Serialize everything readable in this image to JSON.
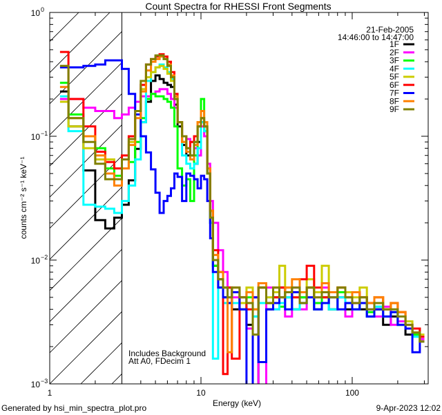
{
  "chart_data": {
    "type": "line",
    "title": "Count Spectra for RHESSI Front Segments",
    "xlabel": "Energy (keV)",
    "ylabel": "counts cm⁻² s⁻¹ keV⁻¹",
    "xscale": "log",
    "yscale": "log",
    "xlim": [
      1,
      318
    ],
    "ylim": [
      0.001,
      1
    ],
    "x_ticks": [
      {
        "value": 1,
        "label": "1"
      },
      {
        "value": 10,
        "label": "10"
      },
      {
        "value": 100,
        "label": "100"
      }
    ],
    "y_ticks": [
      {
        "value": 1,
        "base": "10",
        "exp": "0"
      },
      {
        "value": 0.1,
        "base": "10",
        "exp": "−1"
      },
      {
        "value": 0.01,
        "base": "10",
        "exp": "−2"
      },
      {
        "value": 0.001,
        "base": "10",
        "exp": "−3"
      }
    ],
    "hatched_region": [
      1,
      3
    ],
    "legend_placement": "top-right",
    "date": "21-Feb-2005",
    "time_range": "14:46:00 to 14:47:00",
    "annotations": [
      "Includes Background",
      "Att A0, FDecim 1"
    ],
    "energy_edges": [
      1.17,
      1.33,
      1.67,
      2.0,
      2.33,
      2.67,
      3.0,
      3.33,
      3.67,
      4.0,
      4.33,
      4.67,
      5.0,
      5.33,
      5.67,
      6.0,
      6.33,
      6.67,
      7.0,
      7.5,
      8.0,
      8.5,
      9.0,
      9.5,
      10.0,
      10.5,
      11.0,
      11.5,
      12,
      13,
      14,
      15,
      16,
      18,
      20,
      22,
      24,
      27,
      30,
      33,
      36,
      40,
      45,
      50,
      56,
      63,
      70,
      80,
      90,
      100,
      112,
      125,
      140,
      160,
      180,
      200,
      225,
      250,
      280,
      300
    ],
    "series": [
      {
        "name": "1F",
        "color": "#000000",
        "values": [
          0.23,
          0.12,
          0.053,
          0.021,
          0.018,
          0.022,
          0.028,
          0.044,
          0.079,
          0.13,
          0.19,
          0.28,
          0.31,
          0.29,
          0.27,
          0.26,
          0.25,
          0.18,
          0.12,
          0.085,
          0.07,
          0.065,
          0.06,
          0.09,
          0.13,
          0.11,
          0.05,
          0.02,
          0.009,
          0.007,
          0.005,
          0.006,
          0.004,
          0.005,
          0.003,
          0.0009,
          0.006,
          0.004,
          0.005,
          0.006,
          0.005,
          0.004,
          0.005,
          0.006,
          0.004,
          0.005,
          0.004,
          0.005,
          0.004,
          0.0045,
          0.004,
          0.0035,
          0.004,
          0.003,
          0.0035,
          0.003,
          0.0025,
          0.0028,
          0.0022
        ]
      },
      {
        "name": "2F",
        "color": "#ff00ff",
        "values": [
          0.2,
          0.2,
          0.17,
          0.16,
          0.16,
          0.14,
          0.15,
          0.17,
          0.19,
          0.21,
          0.21,
          0.22,
          0.23,
          0.24,
          0.24,
          0.22,
          0.2,
          0.17,
          0.13,
          0.1,
          0.095,
          0.09,
          0.08,
          0.07,
          0.12,
          0.1,
          0.06,
          0.03,
          0.02,
          0.012,
          0.008,
          0.006,
          0.005,
          0.004,
          0.0028,
          0.005,
          0.0009,
          0.006,
          0.004,
          0.005,
          0.0035,
          0.006,
          0.004,
          0.005,
          0.0045,
          0.006,
          0.004,
          0.005,
          0.0035,
          0.0045,
          0.005,
          0.004,
          0.0035,
          0.0042,
          0.003,
          0.0032,
          0.0028,
          0.0025,
          0.0023
        ]
      },
      {
        "name": "3F",
        "color": "#00ff00",
        "values": [
          0.27,
          0.15,
          0.1,
          0.08,
          0.055,
          0.048,
          0.055,
          0.062,
          0.09,
          0.14,
          0.2,
          0.22,
          0.21,
          0.21,
          0.2,
          0.19,
          0.17,
          0.12,
          0.055,
          0.04,
          0.045,
          0.03,
          0.07,
          0.12,
          0.2,
          0.11,
          0.05,
          0.025,
          0.009,
          0.006,
          0.005,
          0.0045,
          0.0055,
          0.004,
          0.005,
          0.0035,
          0.006,
          0.0045,
          0.005,
          0.0042,
          0.0055,
          0.004,
          0.005,
          0.006,
          0.0045,
          0.005,
          0.004,
          0.0055,
          0.0045,
          0.004,
          0.005,
          0.0038,
          0.0042,
          0.0035,
          0.0038,
          0.003,
          0.0028,
          0.0025,
          0.0022
        ]
      },
      {
        "name": "4F",
        "color": "#00ffff",
        "values": [
          0.21,
          0.11,
          0.028,
          0.027,
          0.026,
          0.024,
          0.03,
          0.04,
          0.065,
          0.13,
          0.28,
          0.33,
          0.36,
          0.38,
          0.36,
          0.33,
          0.29,
          0.2,
          0.13,
          0.07,
          0.06,
          0.055,
          0.06,
          0.08,
          0.13,
          0.11,
          0.05,
          0.02,
          0.0016,
          0.006,
          0.0045,
          0.005,
          0.0045,
          0.004,
          0.0055,
          0.0035,
          0.0045,
          0.005,
          0.004,
          0.0045,
          0.005,
          0.004,
          0.0045,
          0.005,
          0.004,
          0.0045,
          0.004,
          0.005,
          0.0045,
          0.004,
          0.0045,
          0.0035,
          0.0042,
          0.0035,
          0.0038,
          0.003,
          0.0028,
          0.0024,
          0.0022
        ]
      },
      {
        "name": "5F",
        "color": "#cccc00",
        "values": [
          0.19,
          0.12,
          0.08,
          0.065,
          0.065,
          0.055,
          0.065,
          0.09,
          0.15,
          0.24,
          0.3,
          0.33,
          0.36,
          0.37,
          0.35,
          0.32,
          0.28,
          0.2,
          0.13,
          0.09,
          0.08,
          0.07,
          0.09,
          0.13,
          0.14,
          0.12,
          0.055,
          0.025,
          0.01,
          0.007,
          0.006,
          0.005,
          0.0055,
          0.0045,
          0.006,
          0.004,
          0.006,
          0.005,
          0.0055,
          0.009,
          0.006,
          0.005,
          0.0055,
          0.007,
          0.0055,
          0.009,
          0.005,
          0.006,
          0.0055,
          0.005,
          0.006,
          0.0045,
          0.005,
          0.004,
          0.0045,
          0.0038,
          0.0032,
          0.0028,
          0.0025
        ]
      },
      {
        "name": "6F",
        "color": "#ff0000",
        "values": [
          0.48,
          0.2,
          0.12,
          0.075,
          0.062,
          0.055,
          0.07,
          0.1,
          0.15,
          0.26,
          0.38,
          0.42,
          0.44,
          0.46,
          0.44,
          0.4,
          0.33,
          0.22,
          0.13,
          0.1,
          0.08,
          0.09,
          0.1,
          0.12,
          0.14,
          0.12,
          0.055,
          0.025,
          0.012,
          0.008,
          0.0012,
          0.006,
          0.0016,
          0.005,
          0.004,
          0.005,
          0.006,
          0.0045,
          0.005,
          0.006,
          0.0055,
          0.005,
          0.007,
          0.009,
          0.006,
          0.005,
          0.0055,
          0.006,
          0.005,
          0.0055,
          0.005,
          0.0045,
          0.005,
          0.004,
          0.0045,
          0.0038,
          0.003,
          0.0028,
          0.0024
        ]
      },
      {
        "name": "7F",
        "color": "#0000ff",
        "values": [
          0.36,
          0.36,
          0.37,
          0.38,
          0.41,
          0.41,
          0.35,
          0.22,
          0.15,
          0.1,
          0.074,
          0.054,
          0.035,
          0.024,
          0.03,
          0.033,
          0.038,
          0.05,
          0.047,
          0.03,
          0.05,
          0.048,
          0.045,
          0.038,
          0.048,
          0.045,
          0.03,
          0.015,
          0.008,
          0.006,
          0.005,
          0.0045,
          0.0055,
          0.004,
          0.0009,
          0.005,
          0.0015,
          0.004,
          0.0045,
          0.005,
          0.004,
          0.0055,
          0.0045,
          0.005,
          0.004,
          0.0045,
          0.005,
          0.004,
          0.0045,
          0.004,
          0.0045,
          0.0035,
          0.004,
          0.0035,
          0.0038,
          0.003,
          0.0028,
          0.0018,
          0.0022
        ]
      },
      {
        "name": "8F",
        "color": "#ff8000",
        "values": [
          0.25,
          0.14,
          0.1,
          0.07,
          0.05,
          0.04,
          0.055,
          0.085,
          0.14,
          0.23,
          0.34,
          0.4,
          0.42,
          0.44,
          0.42,
          0.38,
          0.31,
          0.21,
          0.13,
          0.09,
          0.075,
          0.065,
          0.085,
          0.13,
          0.16,
          0.13,
          0.055,
          0.025,
          0.011,
          0.008,
          0.006,
          0.0018,
          0.006,
          0.005,
          0.0055,
          0.004,
          0.0065,
          0.0045,
          0.006,
          0.005,
          0.006,
          0.007,
          0.0055,
          0.006,
          0.005,
          0.0065,
          0.0055,
          0.006,
          0.005,
          0.0055,
          0.005,
          0.0045,
          0.005,
          0.004,
          0.0045,
          0.0038,
          0.003,
          0.0026,
          0.0022
        ]
      },
      {
        "name": "9F",
        "color": "#808000",
        "values": [
          0.37,
          0.14,
          0.09,
          0.06,
          0.045,
          0.045,
          0.065,
          0.095,
          0.16,
          0.28,
          0.38,
          0.42,
          0.45,
          0.45,
          0.42,
          0.37,
          0.3,
          0.2,
          0.13,
          0.1,
          0.08,
          0.07,
          0.09,
          0.12,
          0.14,
          0.12,
          0.05,
          0.022,
          0.01,
          0.007,
          0.006,
          0.005,
          0.006,
          0.005,
          0.0045,
          0.0025,
          0.006,
          0.0045,
          0.006,
          0.005,
          0.0055,
          0.006,
          0.0045,
          0.006,
          0.005,
          0.0055,
          0.005,
          0.006,
          0.005,
          0.0045,
          0.005,
          0.004,
          0.0045,
          0.004,
          0.004,
          0.0035,
          0.003,
          0.0026,
          0.0022
        ]
      }
    ]
  },
  "footer": {
    "generator": "Generated by hsi_min_spectra_plot.pro",
    "timestamp": "9-Apr-2023 12:02"
  }
}
